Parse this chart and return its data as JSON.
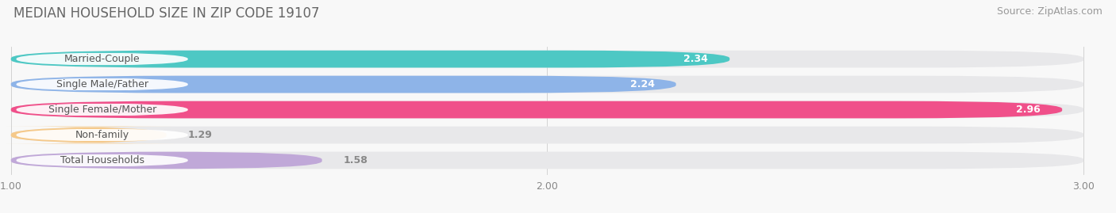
{
  "title": "MEDIAN HOUSEHOLD SIZE IN ZIP CODE 19107",
  "source": "Source: ZipAtlas.com",
  "categories": [
    "Married-Couple",
    "Single Male/Father",
    "Single Female/Mother",
    "Non-family",
    "Total Households"
  ],
  "values": [
    2.34,
    2.24,
    2.96,
    1.29,
    1.58
  ],
  "bar_colors": [
    "#4dc8c4",
    "#8eb4e8",
    "#f0508a",
    "#f5c98a",
    "#c0a8d8"
  ],
  "xlim_min": 1.0,
  "xlim_max": 3.0,
  "xticks": [
    1.0,
    2.0,
    3.0
  ],
  "background_color": "#f8f8f8",
  "bar_track_color": "#e8e8ea",
  "label_bg_color": "#ffffff",
  "title_fontsize": 12,
  "source_fontsize": 9,
  "label_fontsize": 9,
  "value_fontsize": 9,
  "tick_fontsize": 9,
  "bar_height": 0.68,
  "value_colors_inside": [
    "#ffffff",
    "#ffffff",
    "#ffffff",
    "#888888",
    "#888888"
  ],
  "value_threshold": 2.0
}
